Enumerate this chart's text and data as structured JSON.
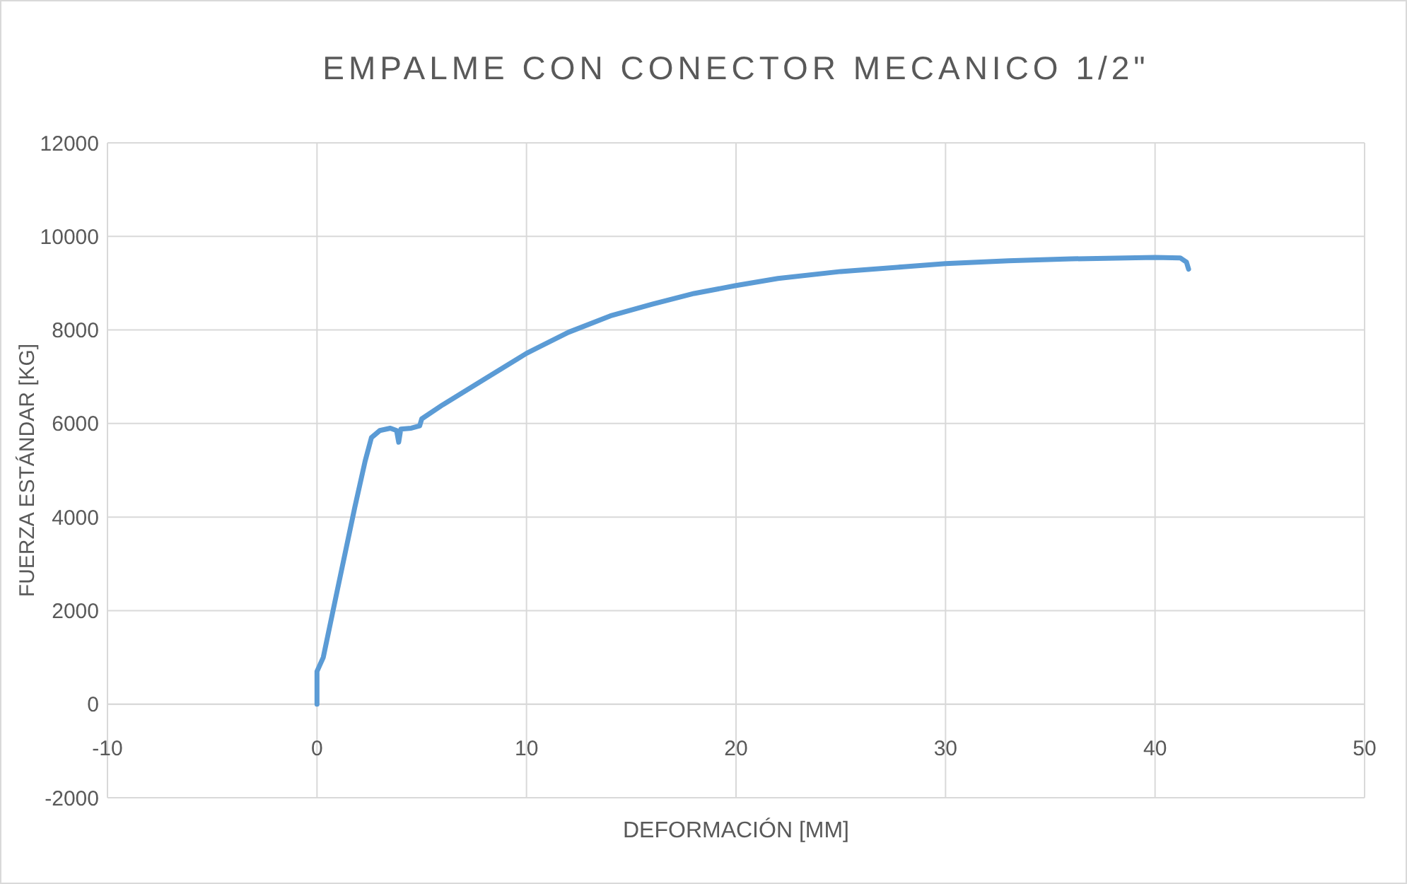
{
  "chart_data": {
    "type": "line",
    "title": "EMPALME CON CONECTOR MECANICO 1/2\"",
    "xlabel": "DEFORMACIÓN [MM]",
    "ylabel": "FUERZA ESTÁNDAR [KG]",
    "x": [
      0,
      0,
      0.3,
      1,
      1.8,
      2.3,
      2.6,
      3,
      3.5,
      3.8,
      3.9,
      4,
      4.5,
      4.9,
      5,
      6,
      8,
      10,
      12,
      14,
      16,
      18,
      20,
      22,
      25,
      28,
      30,
      33,
      36,
      40,
      41.2,
      41.5,
      41.6
    ],
    "series": [
      {
        "color": "#5b9bd5",
        "values": [
          0,
          700,
          1000,
          2500,
          4200,
          5200,
          5700,
          5850,
          5900,
          5850,
          5600,
          5880,
          5900,
          5950,
          6100,
          6400,
          6950,
          7500,
          7950,
          8300,
          8550,
          8780,
          8950,
          9100,
          9250,
          9350,
          9420,
          9480,
          9520,
          9550,
          9540,
          9450,
          9300
        ]
      }
    ],
    "xlim": [
      -10,
      50
    ],
    "xticks": [
      -10,
      0,
      10,
      20,
      30,
      40,
      50
    ],
    "ylim": [
      -2000,
      12000
    ],
    "yticks": [
      -2000,
      0,
      2000,
      4000,
      6000,
      8000,
      10000,
      12000
    ],
    "grid": true,
    "marker": "none",
    "line_style": "solid"
  }
}
